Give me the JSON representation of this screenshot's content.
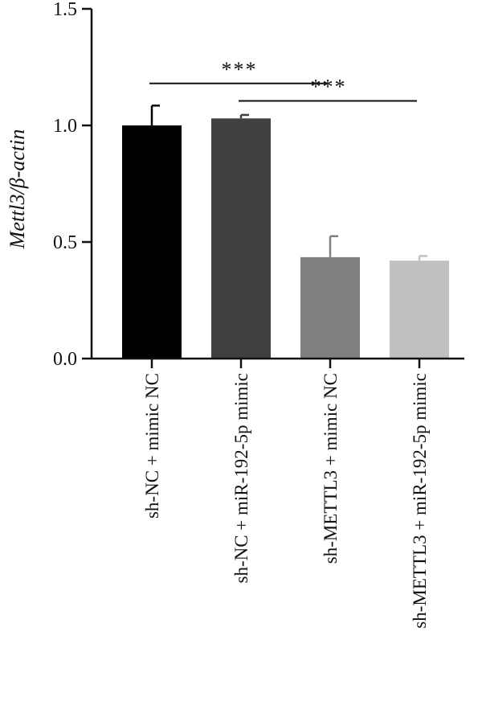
{
  "chart_data": {
    "type": "bar",
    "ylabel": "Mettl3/β-actin",
    "xlabel": "",
    "ylim": [
      0,
      1.5
    ],
    "yticks": [
      0.0,
      0.5,
      1.0,
      1.5
    ],
    "ytick_labels": [
      "0.0",
      "0.5",
      "1.0",
      "1.5"
    ],
    "categories": [
      "sh-NC + mimic NC",
      "sh-NC + miR-192-5p mimic",
      "sh-METTL3 + mimic NC",
      "sh-METTL3 + miR-192-5p mimic"
    ],
    "values": [
      1.0,
      1.03,
      0.435,
      0.42
    ],
    "errors": [
      0.085,
      0.015,
      0.09,
      0.02
    ],
    "colors": [
      "#000000",
      "#404040",
      "#808080",
      "#c0c0c0"
    ],
    "significance": [
      {
        "from": 0,
        "to": 2,
        "label": "***",
        "y": 1.18
      },
      {
        "from": 1,
        "to": 3,
        "label": "***",
        "y": 1.105
      }
    ],
    "grid": false,
    "legend": "none"
  }
}
